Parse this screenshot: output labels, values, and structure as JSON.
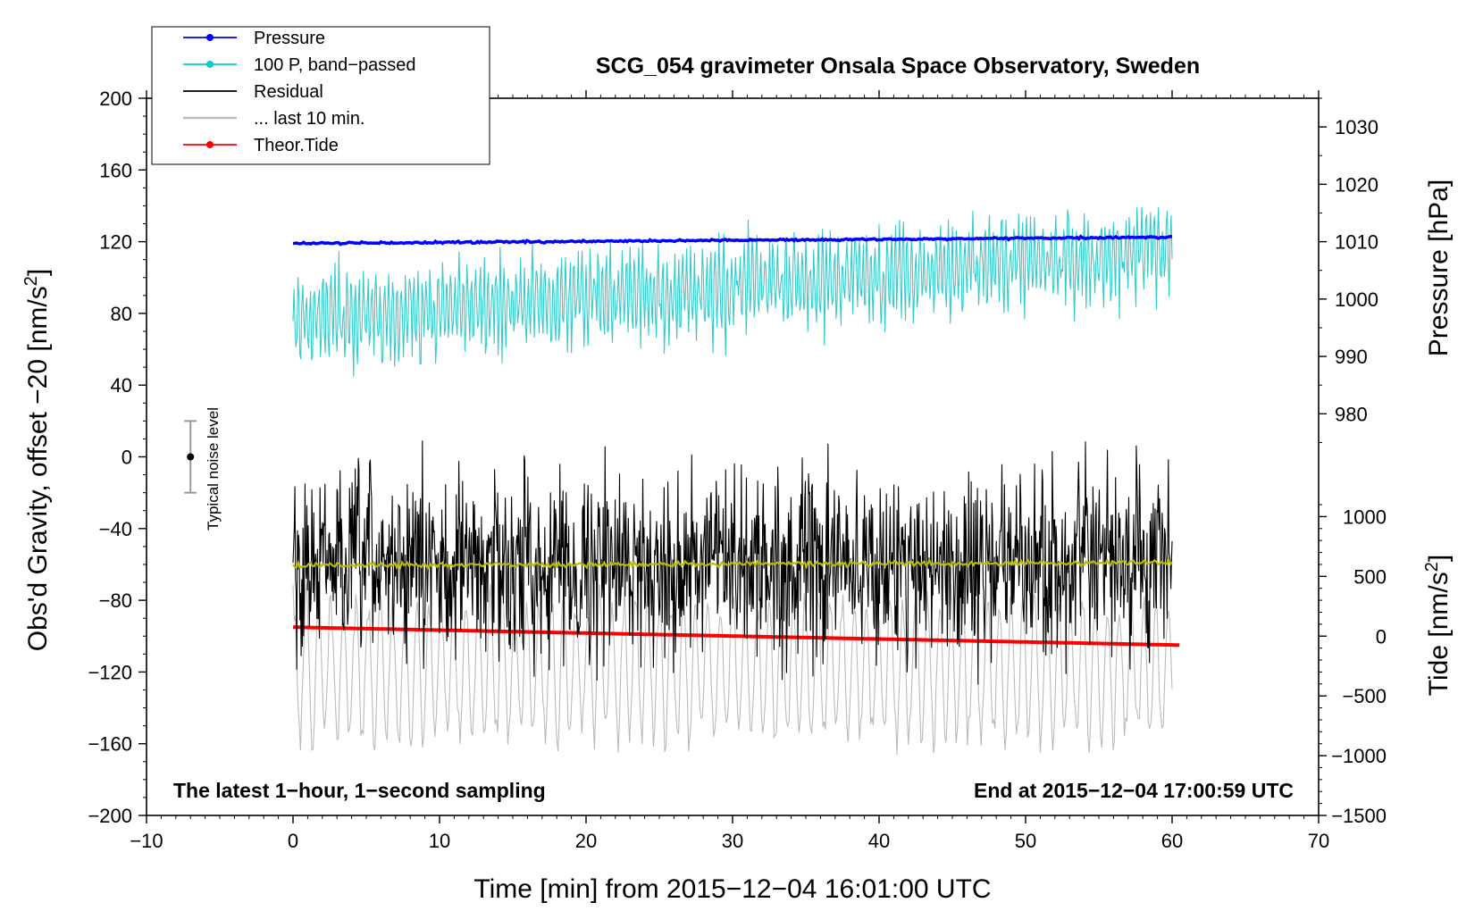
{
  "chart_data": {
    "type": "line",
    "title": "SCG_054 gravimeter Onsala Space Observatory, Sweden",
    "xlabel": "Time [min] from 2015−12−04 16:01:00 UTC",
    "ylabel_left_main": "Obs'd Gravity, offset −20 [nm/s",
    "ylabel_left_sup": "2",
    "ylabel_left_close": "]",
    "ylabel_right_pressure": "Pressure [hPa]",
    "ylabel_right_tide_main": "Tide [nm/s",
    "ylabel_right_tide_sup": "2",
    "ylabel_right_tide_close": "]",
    "note_left": "The latest 1−hour, 1−second sampling",
    "note_right": "End at 2015−12−04 17:00:59 UTC",
    "noise_label": "Typical noise level",
    "noise_bar": {
      "center": 0,
      "half_range": 20,
      "x": -7
    },
    "xlim": [
      -10,
      70
    ],
    "ylim": [
      -200,
      200
    ],
    "x_ticks": [
      -10,
      0,
      10,
      20,
      30,
      40,
      50,
      60,
      70
    ],
    "x_tick_labels": [
      "−10",
      "0",
      "10",
      "20",
      "30",
      "40",
      "50",
      "60",
      "70"
    ],
    "y_ticks": [
      -200,
      -160,
      -120,
      -80,
      -40,
      0,
      40,
      80,
      120,
      160,
      200
    ],
    "y_tick_labels": [
      "−200",
      "−160",
      "−120",
      "−80",
      "−40",
      "0",
      "40",
      "80",
      "120",
      "160",
      "200"
    ],
    "pressure_axis": {
      "ticks": [
        980,
        990,
        1000,
        1010,
        1020,
        1030
      ],
      "ref_value": 1010,
      "ref_gravity": 120,
      "gravity_per_unit": 3.2
    },
    "tide_axis": {
      "ticks": [
        -1500,
        -1000,
        -500,
        0,
        500,
        1000
      ],
      "tick_labels": [
        "−1500",
        "−1000",
        "−500",
        "0",
        "500",
        "1000"
      ],
      "ref_value": 0,
      "ref_gravity": -100,
      "gravity_per_unit": 0.06667
    },
    "legend": {
      "location": "top-left",
      "entries": [
        {
          "label": "Pressure",
          "color": "#0000ff",
          "marker": true
        },
        {
          "label": "100 P, band−passed",
          "color": "#00cccc",
          "marker": true
        },
        {
          "label": "Residual",
          "color": "#000000",
          "marker": false
        },
        {
          "label": "... last 10 min.",
          "color": "#bbbbbb",
          "marker": false
        },
        {
          "label": "Theor.Tide",
          "color": "#ff0000",
          "marker": true
        }
      ]
    },
    "series": [
      {
        "name": "Pressure",
        "color": "#0000ff",
        "x_range": [
          0,
          60
        ],
        "start": 119,
        "end": 122.5,
        "noise": 0.6
      },
      {
        "name": "100 P, band−passed",
        "color": "#33cccc",
        "x_range": [
          0,
          60
        ],
        "start": 75,
        "end": 115,
        "noise": 28
      },
      {
        "name": "Residual",
        "color": "#000000",
        "x_range": [
          0,
          60
        ],
        "start": -60,
        "end": -60,
        "noise": 55
      },
      {
        "name": "... last 10 min.",
        "color": "#bbbbbb",
        "x_range": [
          0,
          60
        ],
        "start": -118,
        "end": -118,
        "noise": 45
      },
      {
        "name": "Residual mean",
        "color": "#bbbb00",
        "x_range": [
          0,
          60
        ],
        "start": -60.5,
        "end": -59,
        "noise": 1.5
      },
      {
        "name": "Theor.Tide",
        "color": "#ff0000",
        "x_range": [
          0,
          60.5
        ],
        "start": -95,
        "end": -105,
        "noise": 0
      }
    ]
  }
}
